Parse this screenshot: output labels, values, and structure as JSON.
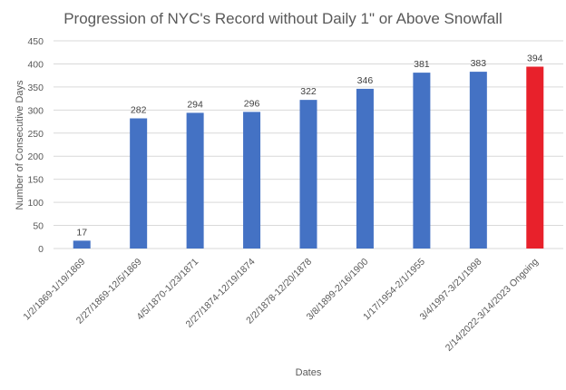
{
  "chart_data": {
    "type": "bar",
    "title": "Progression of NYC's Record without Daily 1\" or Above Snowfall",
    "xlabel": "Dates",
    "ylabel": "Number of Consecutive Days",
    "ylim": [
      0,
      450
    ],
    "yticks": [
      0,
      50,
      100,
      150,
      200,
      250,
      300,
      350,
      400,
      450
    ],
    "grid": true,
    "legend": "none",
    "categories": [
      "1/2/1869-1/19/1869",
      "2/27/1869-12/5/1869",
      "4/5/1870-1/23/1871",
      "2/27/1874-12/19/1874",
      "2/2/1878-12/20/1878",
      "3/8/1899-2/16/1900",
      "1/17/1954-2/1/1955",
      "3/4/1997-3/21/1998",
      "2/14/2022-3/14/2023 Ongoing"
    ],
    "values": [
      17,
      282,
      294,
      296,
      322,
      346,
      381,
      383,
      394
    ],
    "data_labels": [
      "17",
      "282",
      "294",
      "296",
      "322",
      "346",
      "381",
      "383",
      "394"
    ],
    "colors": [
      "#4472C4",
      "#4472C4",
      "#4472C4",
      "#4472C4",
      "#4472C4",
      "#4472C4",
      "#4472C4",
      "#4472C4",
      "#E8212B"
    ]
  }
}
